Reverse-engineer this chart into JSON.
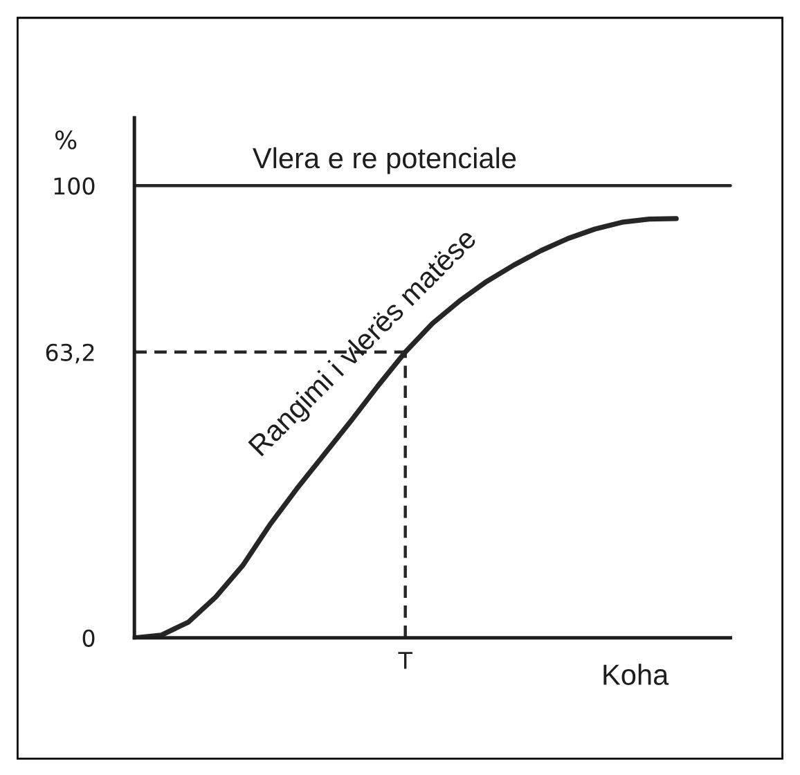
{
  "chart_data": {
    "type": "line",
    "xlabel": "Koha",
    "ylabel": "%",
    "categories": [
      null,
      null,
      null,
      null,
      null,
      null,
      null,
      null,
      null,
      null,
      "T",
      null,
      null,
      null,
      null,
      null,
      null,
      null,
      null,
      null,
      null,
      null,
      null
    ],
    "series": [
      {
        "color": "#262626",
        "values": [
          0,
          0.6,
          3.5,
          9,
          16,
          25,
          33,
          40.5,
          48,
          55.8,
          63.2,
          69.5,
          74.5,
          78.8,
          82.4,
          85.6,
          88.3,
          90.4,
          91.9,
          92.6,
          92.7,
          null,
          null
        ]
      }
    ],
    "ylim": [
      0,
      115
    ],
    "yticks": [
      0,
      {
        "value": 63.2,
        "label": "63,2"
      },
      100
    ],
    "ref_lines": [
      {
        "axis": "y",
        "value": 100,
        "label": "Vlera e re potenciale",
        "color": "#262626"
      },
      {
        "axis": "y",
        "value": 63.2,
        "line_style": "dashed",
        "color": "#262626"
      },
      {
        "axis": "x",
        "value": "T",
        "line_style": "dashed",
        "color": "#262626"
      }
    ],
    "annotations": [
      "Rangimi i vlerës matëse"
    ]
  }
}
